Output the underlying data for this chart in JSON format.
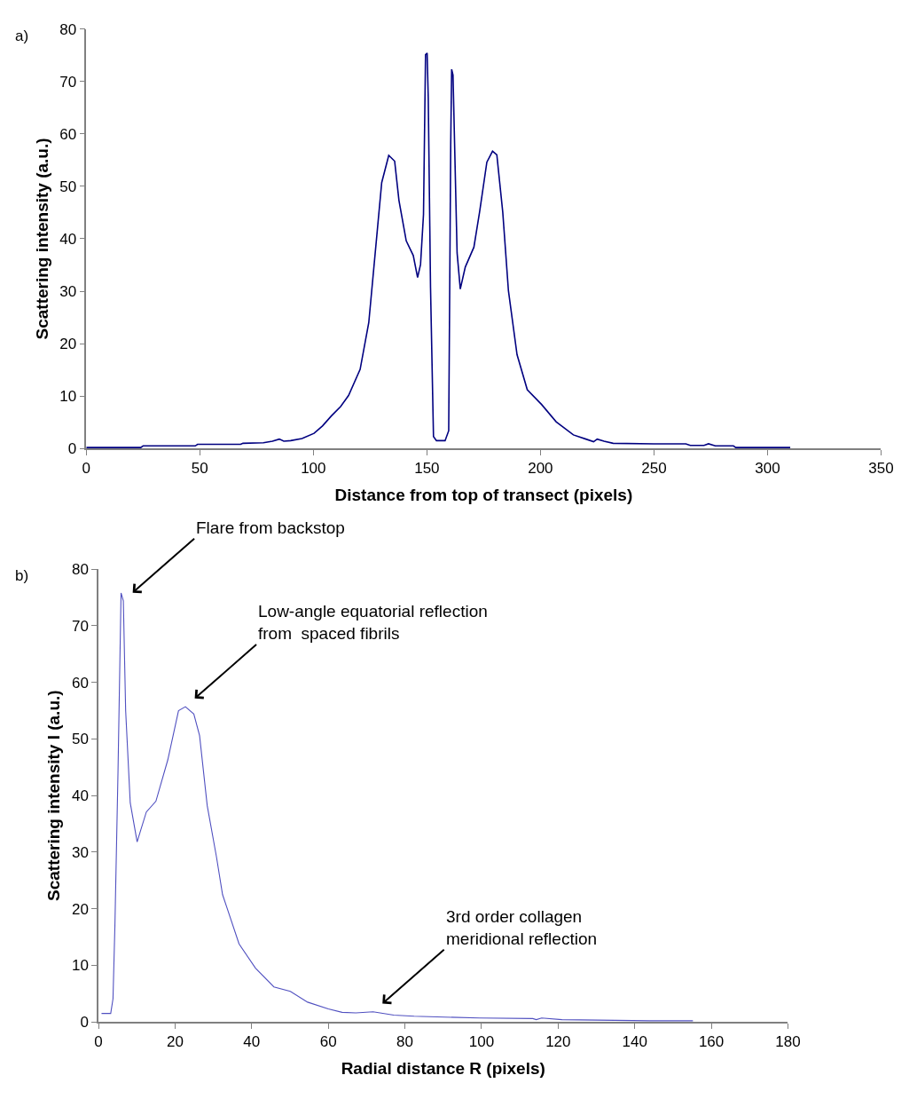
{
  "chart_data": [
    {
      "type": "line",
      "xlabel": "Distance from top of transect (pixels)",
      "ylabel": "Scattering intensity (a.u.)",
      "color": "#000080",
      "x": [
        0,
        24,
        25,
        48,
        49,
        68,
        69,
        78,
        82,
        85,
        87,
        90,
        95,
        100.3,
        104,
        107.9,
        112,
        115.5,
        120.6,
        124.4,
        128.2,
        130.1,
        133.2,
        135.8,
        137.7,
        140.9,
        144.0,
        145.9,
        147.2,
        148.5,
        149.4,
        150.1,
        150.6,
        151.6,
        152.9,
        154.2,
        158.0,
        159.6,
        160.5,
        160.9,
        161.5,
        163.3,
        164.7,
        166.9,
        170.7,
        173.2,
        176.4,
        178.9,
        180.8,
        183.4,
        185.9,
        189.7,
        194.2,
        200.5,
        206.9,
        214.5,
        220,
        223.4,
        225,
        228,
        232,
        250,
        264,
        266,
        272,
        274,
        277,
        285,
        286,
        310
      ],
      "values": [
        0.2,
        0.2,
        0.5,
        0.5,
        0.8,
        0.8,
        1.0,
        1.1,
        1.4,
        1.8,
        1.4,
        1.5,
        1.9,
        2.9,
        4.3,
        6.2,
        8.0,
        10.1,
        15.1,
        24.0,
        41.8,
        50.7,
        55.9,
        54.8,
        47.3,
        39.6,
        36.8,
        32.6,
        35.1,
        44.6,
        75.1,
        75.4,
        66.8,
        30.7,
        2.3,
        1.5,
        1.5,
        3.4,
        58.4,
        72.3,
        71.2,
        37.3,
        30.4,
        34.6,
        38.4,
        45.1,
        54.6,
        56.7,
        56.0,
        45.1,
        30.1,
        17.9,
        11.2,
        8.4,
        5.1,
        2.6,
        1.8,
        1.3,
        1.8,
        1.4,
        1.0,
        0.9,
        0.9,
        0.6,
        0.6,
        0.9,
        0.5,
        0.5,
        0.2,
        0.2
      ],
      "xlim": [
        0,
        350
      ],
      "ylim": [
        0,
        80
      ],
      "xticks": [
        0,
        50,
        100,
        150,
        200,
        250,
        300,
        350
      ],
      "yticks": [
        0,
        10,
        20,
        30,
        40,
        50,
        60,
        70,
        80
      ],
      "annotations": [
        "a)"
      ]
    },
    {
      "type": "line",
      "xlabel": "Radial distance R (pixels)",
      "ylabel": "Scattering intensity I (a.u.)",
      "color": "#5050c0",
      "x": [
        0.8,
        3.2,
        3.8,
        4.3,
        5.1,
        5.9,
        6.5,
        7.1,
        8.3,
        10.1,
        11.0,
        12.5,
        15.0,
        18.1,
        20.9,
        22.7,
        24.9,
        26.4,
        28.4,
        30.8,
        32.4,
        36.7,
        41.0,
        45.8,
        50.1,
        54.6,
        60,
        63.6,
        67.2,
        71.7,
        77.1,
        82.4,
        99.5,
        113.4,
        114.3,
        115.7,
        121.0,
        143.9,
        155.2
      ],
      "values": [
        1.5,
        1.5,
        4.1,
        17.1,
        44.1,
        75.8,
        74.4,
        55.0,
        38.7,
        31.8,
        33.8,
        37.1,
        39.0,
        46.3,
        55.0,
        55.7,
        54.4,
        50.6,
        38.2,
        29.2,
        22.5,
        13.8,
        9.5,
        6.2,
        5.4,
        3.5,
        2.3,
        1.7,
        1.6,
        1.8,
        1.2,
        1.0,
        0.7,
        0.6,
        0.4,
        0.7,
        0.4,
        0.2,
        0.2
      ],
      "xlim": [
        0,
        180
      ],
      "ylim": [
        0,
        80
      ],
      "xticks": [
        0,
        20,
        40,
        60,
        80,
        100,
        120,
        140,
        160,
        180
      ],
      "yticks": [
        0,
        10,
        20,
        30,
        40,
        50,
        60,
        70,
        80
      ],
      "annotations": [
        "b)",
        {
          "text": "Flare from backstop",
          "x": 6.5,
          "y": 74.4
        },
        {
          "text": "Low-angle equatorial reflection\nfrom  spaced fibrils",
          "x": 22.7,
          "y": 55.7
        },
        {
          "text": "3rd order collagen\nmeridional reflection",
          "x": 71.7,
          "y": 1.8
        }
      ]
    }
  ]
}
